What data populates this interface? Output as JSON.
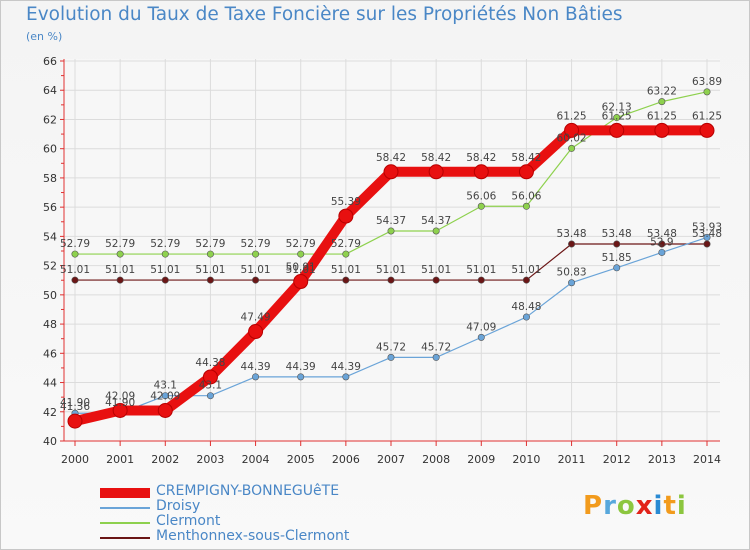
{
  "title": "Evolution du Taux de Taxe Foncière sur les Propriétés Non Bâties",
  "unit_label": "(en %)",
  "logo_text": "Proxiti",
  "logo_colors": [
    "#f29b1d",
    "#58a8dc",
    "#8cc63f",
    "#e2231a",
    "#2a8ad3",
    "#f29b1d",
    "#8cc63f"
  ],
  "chart_data": {
    "type": "line",
    "title": "Evolution du Taux de Taxe Foncière sur les Propriétés Non Bâties",
    "ylabel": "(en %)",
    "xlabel": "",
    "x": [
      2000,
      2001,
      2002,
      2003,
      2004,
      2005,
      2006,
      2007,
      2008,
      2009,
      2010,
      2011,
      2012,
      2013,
      2014
    ],
    "ylim": [
      40,
      66
    ],
    "yticks": [
      40,
      42,
      44,
      46,
      48,
      50,
      52,
      54,
      56,
      58,
      60,
      62,
      64,
      66
    ],
    "grid": true,
    "legend_position": "bottom-left",
    "series": [
      {
        "name": "CREMPIGNY-BONNEGUêTE",
        "color": "#e81010",
        "values": [
          41.36,
          42.09,
          42.09,
          44.38,
          47.49,
          50.91,
          55.39,
          58.42,
          58.42,
          58.42,
          58.42,
          61.25,
          61.25,
          61.25,
          61.25
        ],
        "labels": [
          "41.36",
          "42.09",
          "42.09",
          "44.38",
          "47.49",
          "50.91",
          "55.39",
          "58.42",
          "58.42",
          "58.42",
          "58.42",
          "61.25",
          "61.25",
          "61.25",
          "61.25"
        ]
      },
      {
        "name": "Droisy",
        "color": "#6aa4d8",
        "values": [
          41.9,
          41.9,
          43.1,
          43.1,
          44.39,
          44.39,
          44.39,
          45.72,
          45.72,
          47.09,
          48.48,
          50.83,
          51.85,
          52.9,
          53.93
        ],
        "labels": [
          "41.90",
          "41.90",
          "43.1",
          "43.1",
          "44.39",
          "44.39",
          "44.39",
          "45.72",
          "45.72",
          "47.09",
          "48.48",
          "50.83",
          "51.85",
          "52.9",
          "53.93"
        ]
      },
      {
        "name": "Clermont",
        "color": "#8ed14e",
        "values": [
          52.79,
          52.79,
          52.79,
          52.79,
          52.79,
          52.79,
          52.79,
          54.37,
          54.37,
          56.06,
          56.06,
          60.02,
          62.13,
          63.22,
          63.89
        ],
        "labels": [
          "52.79",
          "52.79",
          "52.79",
          "52.79",
          "52.79",
          "52.79",
          "52.79",
          "54.37",
          "54.37",
          "56.06",
          "56.06",
          "60.02",
          "62.13",
          "63.22",
          "63.89"
        ]
      },
      {
        "name": "Menthonnex-sous-Clermont",
        "color": "#6b1616",
        "values": [
          51.01,
          51.01,
          51.01,
          51.01,
          51.01,
          51.01,
          51.01,
          51.01,
          51.01,
          51.01,
          51.01,
          53.48,
          53.48,
          53.48,
          53.48
        ],
        "labels": [
          "51.01",
          "51.01",
          "51.01",
          "51.01",
          "51.01",
          "51.01",
          "51.01",
          "51.01",
          "51.01",
          "51.01",
          "51.01",
          "53.48",
          "53.48",
          "53.48",
          "53.48"
        ]
      }
    ]
  }
}
